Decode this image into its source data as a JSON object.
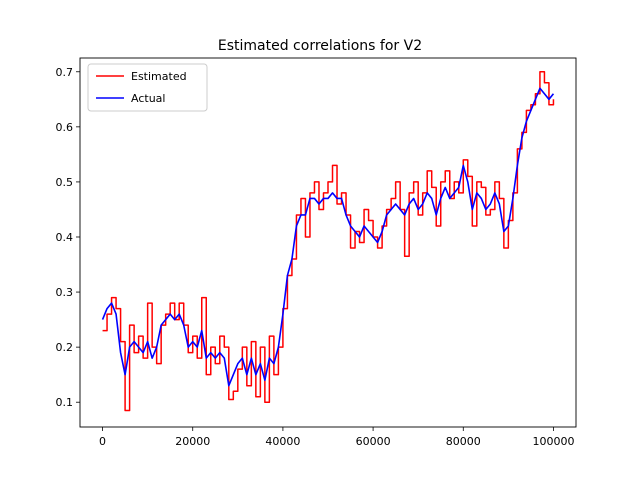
{
  "chart_data": {
    "type": "line",
    "title": "Estimated correlations for V2",
    "xlabel": "",
    "ylabel": "",
    "xlim": [
      -5000,
      105000
    ],
    "ylim": [
      0.055,
      0.725
    ],
    "xticks": [
      0,
      20000,
      40000,
      60000,
      80000,
      100000
    ],
    "xtick_labels": [
      "0",
      "20000",
      "40000",
      "60000",
      "80000",
      "100000"
    ],
    "yticks": [
      0.1,
      0.2,
      0.3,
      0.4,
      0.5,
      0.6,
      0.7
    ],
    "ytick_labels": [
      "0.1",
      "0.2",
      "0.3",
      "0.4",
      "0.5",
      "0.6",
      "0.7"
    ],
    "grid": false,
    "legend_position": "top-left",
    "series": [
      {
        "name": "Estimated",
        "color": "#ff0000",
        "style": "step",
        "x": [
          0,
          1000,
          2000,
          3000,
          4000,
          5000,
          6000,
          7000,
          8000,
          9000,
          10000,
          11000,
          12000,
          13000,
          14000,
          15000,
          16000,
          17000,
          18000,
          19000,
          20000,
          21000,
          22000,
          23000,
          24000,
          25000,
          26000,
          27000,
          28000,
          29000,
          30000,
          31000,
          32000,
          33000,
          34000,
          35000,
          36000,
          37000,
          38000,
          39000,
          40000,
          41000,
          42000,
          43000,
          44000,
          45000,
          46000,
          47000,
          48000,
          49000,
          50000,
          51000,
          52000,
          53000,
          54000,
          55000,
          56000,
          57000,
          58000,
          59000,
          60000,
          61000,
          62000,
          63000,
          64000,
          65000,
          66000,
          67000,
          68000,
          69000,
          70000,
          71000,
          72000,
          73000,
          74000,
          75000,
          76000,
          77000,
          78000,
          79000,
          80000,
          81000,
          82000,
          83000,
          84000,
          85000,
          86000,
          87000,
          88000,
          89000,
          90000,
          91000,
          92000,
          93000,
          94000,
          95000,
          96000,
          97000,
          98000,
          99000,
          100000
        ],
        "values": [
          0.23,
          0.26,
          0.29,
          0.27,
          0.21,
          0.085,
          0.24,
          0.19,
          0.22,
          0.18,
          0.28,
          0.2,
          0.17,
          0.24,
          0.26,
          0.28,
          0.25,
          0.28,
          0.24,
          0.19,
          0.22,
          0.18,
          0.29,
          0.15,
          0.2,
          0.17,
          0.22,
          0.2,
          0.105,
          0.12,
          0.16,
          0.2,
          0.13,
          0.21,
          0.11,
          0.2,
          0.1,
          0.22,
          0.15,
          0.2,
          0.27,
          0.33,
          0.36,
          0.44,
          0.47,
          0.4,
          0.48,
          0.5,
          0.45,
          0.48,
          0.5,
          0.53,
          0.46,
          0.48,
          0.44,
          0.38,
          0.41,
          0.39,
          0.45,
          0.43,
          0.4,
          0.38,
          0.42,
          0.45,
          0.47,
          0.5,
          0.45,
          0.365,
          0.48,
          0.5,
          0.44,
          0.48,
          0.52,
          0.49,
          0.42,
          0.5,
          0.52,
          0.47,
          0.5,
          0.48,
          0.54,
          0.51,
          0.42,
          0.5,
          0.49,
          0.44,
          0.45,
          0.5,
          0.47,
          0.38,
          0.43,
          0.48,
          0.56,
          0.59,
          0.63,
          0.64,
          0.66,
          0.7,
          0.68,
          0.64,
          0.65
        ]
      },
      {
        "name": "Actual",
        "color": "#0000ff",
        "style": "line",
        "x": [
          0,
          1000,
          2000,
          3000,
          4000,
          5000,
          6000,
          7000,
          8000,
          9000,
          10000,
          11000,
          12000,
          13000,
          14000,
          15000,
          16000,
          17000,
          18000,
          19000,
          20000,
          21000,
          22000,
          23000,
          24000,
          25000,
          26000,
          27000,
          28000,
          29000,
          30000,
          31000,
          32000,
          33000,
          34000,
          35000,
          36000,
          37000,
          38000,
          39000,
          40000,
          41000,
          42000,
          43000,
          44000,
          45000,
          46000,
          47000,
          48000,
          49000,
          50000,
          51000,
          52000,
          53000,
          54000,
          55000,
          56000,
          57000,
          58000,
          59000,
          60000,
          61000,
          62000,
          63000,
          64000,
          65000,
          66000,
          67000,
          68000,
          69000,
          70000,
          71000,
          72000,
          73000,
          74000,
          75000,
          76000,
          77000,
          78000,
          79000,
          80000,
          81000,
          82000,
          83000,
          84000,
          85000,
          86000,
          87000,
          88000,
          89000,
          90000,
          91000,
          92000,
          93000,
          94000,
          95000,
          96000,
          97000,
          98000,
          99000,
          100000
        ],
        "values": [
          0.25,
          0.27,
          0.28,
          0.26,
          0.19,
          0.15,
          0.2,
          0.21,
          0.2,
          0.19,
          0.21,
          0.18,
          0.2,
          0.24,
          0.25,
          0.26,
          0.25,
          0.26,
          0.24,
          0.2,
          0.21,
          0.2,
          0.23,
          0.18,
          0.19,
          0.18,
          0.19,
          0.18,
          0.13,
          0.15,
          0.17,
          0.18,
          0.15,
          0.18,
          0.15,
          0.17,
          0.14,
          0.18,
          0.17,
          0.2,
          0.26,
          0.33,
          0.36,
          0.42,
          0.44,
          0.44,
          0.47,
          0.47,
          0.46,
          0.47,
          0.47,
          0.48,
          0.47,
          0.47,
          0.44,
          0.42,
          0.41,
          0.4,
          0.42,
          0.41,
          0.4,
          0.39,
          0.41,
          0.44,
          0.45,
          0.46,
          0.45,
          0.44,
          0.46,
          0.47,
          0.45,
          0.46,
          0.48,
          0.47,
          0.44,
          0.47,
          0.49,
          0.47,
          0.48,
          0.49,
          0.53,
          0.5,
          0.45,
          0.48,
          0.47,
          0.45,
          0.46,
          0.48,
          0.46,
          0.41,
          0.42,
          0.47,
          0.53,
          0.58,
          0.61,
          0.63,
          0.65,
          0.67,
          0.66,
          0.65,
          0.66
        ]
      }
    ]
  }
}
